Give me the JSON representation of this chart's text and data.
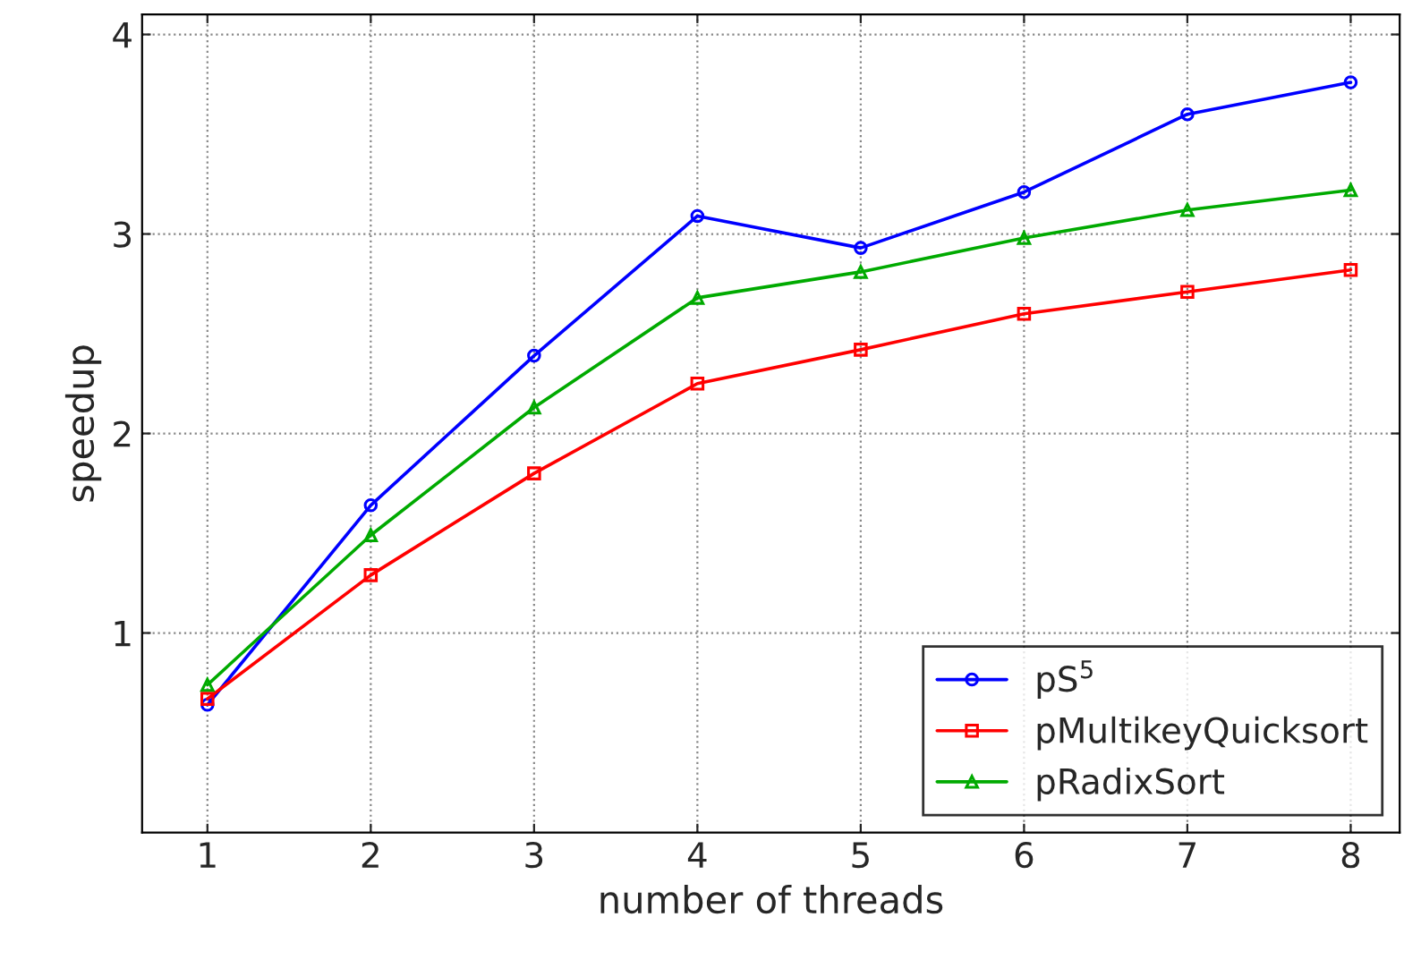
{
  "chart_data": {
    "type": "line",
    "xlabel": "number of threads",
    "ylabel": "speedup",
    "x": [
      1,
      2,
      3,
      4,
      5,
      6,
      7,
      8
    ],
    "series": [
      {
        "name": "pS$^{5}$",
        "color": "#0000ff",
        "marker": "circle",
        "values": [
          0.64,
          1.64,
          2.39,
          3.09,
          2.93,
          3.21,
          3.6,
          3.76
        ]
      },
      {
        "name": "pMultikeyQuicksort",
        "color": "#ff0000",
        "marker": "square",
        "values": [
          0.67,
          1.29,
          1.8,
          2.25,
          2.42,
          2.6,
          2.71,
          2.82
        ]
      },
      {
        "name": "pRadixSort",
        "color": "#00aa00",
        "marker": "triangle",
        "values": [
          0.74,
          1.49,
          2.13,
          2.68,
          2.81,
          2.98,
          3.12,
          3.22
        ]
      }
    ],
    "xlim": [
      0.6,
      8.3
    ],
    "xticks": [
      1,
      2,
      3,
      4,
      5,
      6,
      7,
      8
    ],
    "ylim": [
      0,
      4.1
    ],
    "yticks": [
      1,
      2,
      3,
      4
    ],
    "grid": true,
    "legend": "bottom right",
    "line_style": "solid"
  }
}
